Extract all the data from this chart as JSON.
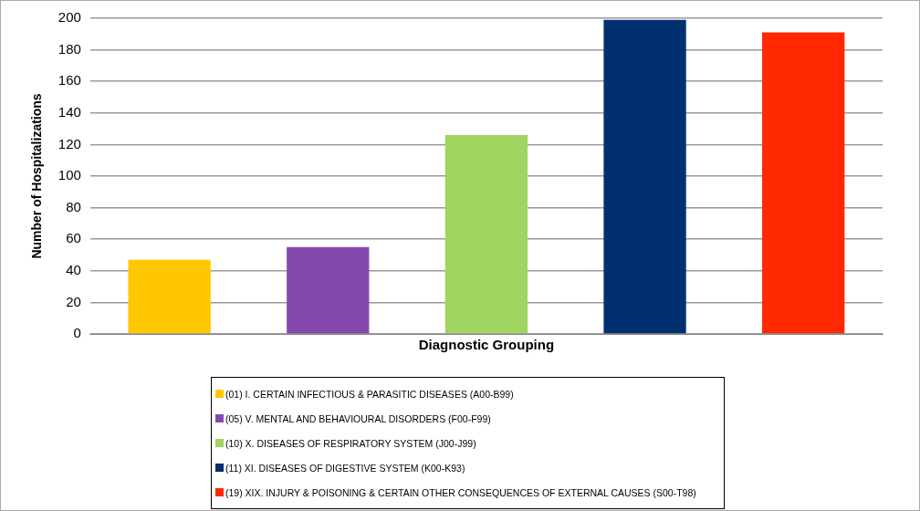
{
  "chart_data": {
    "type": "bar",
    "xlabel": "Diagnostic Grouping",
    "ylabel": "Number of Hospitalizations",
    "categories": [
      null
    ],
    "series": [
      {
        "name": "(01) I. CERTAIN INFECTIOUS & PARASITIC DISEASES (A00-B99)",
        "color": "#ffc800",
        "values": [
          47
        ]
      },
      {
        "name": "(05) V. MENTAL AND BEHAVIOURAL DISORDERS (F00-F99)",
        "color": "#8549ae",
        "values": [
          55
        ]
      },
      {
        "name": "(10) X. DISEASES OF RESPIRATORY SYSTEM (J00-J99)",
        "color": "#a0d562",
        "values": [
          126
        ]
      },
      {
        "name": "(11) XI. DISEASES OF DIGESTIVE SYSTEM (K00-K93)",
        "color": "#002f6f",
        "values": [
          199
        ]
      },
      {
        "name": "(19) XIX. INJURY & POISONING & CERTAIN OTHER CONSEQUENCES OF EXTERNAL CAUSES (S00-T98)",
        "color": "#ff2800",
        "values": [
          191
        ]
      }
    ],
    "ylim": [
      0,
      200
    ],
    "yticks": [
      0,
      20,
      40,
      60,
      80,
      100,
      120,
      140,
      160,
      180,
      200
    ],
    "grid": "y",
    "legend": "bottom"
  }
}
